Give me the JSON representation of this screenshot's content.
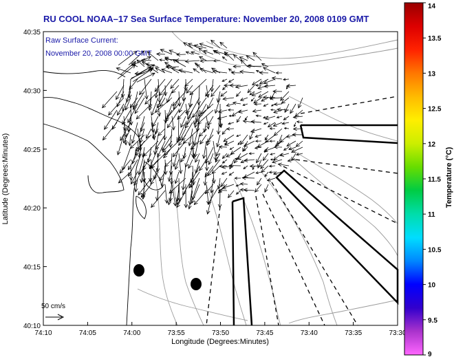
{
  "chart_data": {
    "type": "vector-field-map",
    "title": "RU COOL  NOAA–17  Sea Surface Temperature:  November 20, 2008 0109 GMT",
    "annotation": {
      "line1": "Raw Surface Current:",
      "line2": "November 20, 2008 00:00 GMT"
    },
    "scale_label": "50 cm/s",
    "xlabel": "Longitude (Degrees:Minutes)",
    "ylabel": "Latitude (Degrees:Minutes)",
    "x_ticks": [
      "74:10",
      "74:05",
      "74:00",
      "73:55",
      "73:50",
      "73:45",
      "73:40",
      "73:35",
      "73:30"
    ],
    "y_ticks": [
      "40:35",
      "40:30",
      "40:25",
      "40:20",
      "40:15",
      "40:10"
    ],
    "xlim_minutes_west_of_74": [
      10,
      -30
    ],
    "ylim_minutes_north_of_40": [
      10,
      35
    ],
    "colorbar": {
      "label": "Temperature (°C)",
      "range": [
        9,
        14
      ],
      "ticks": [
        "14",
        "13.5",
        "13",
        "12.5",
        "12",
        "11.5",
        "11",
        "10.5",
        "10",
        "9.5",
        "9"
      ],
      "colors": [
        "#ff66ff",
        "#aa33cc",
        "#3300cc",
        "#0000ff",
        "#0088ff",
        "#00ddff",
        "#00ddaa",
        "#00cc44",
        "#66dd00",
        "#ccee00",
        "#ffee00",
        "#ffbb00",
        "#ff7700",
        "#ff2200",
        "#dd0000",
        "#990000"
      ]
    }
  }
}
